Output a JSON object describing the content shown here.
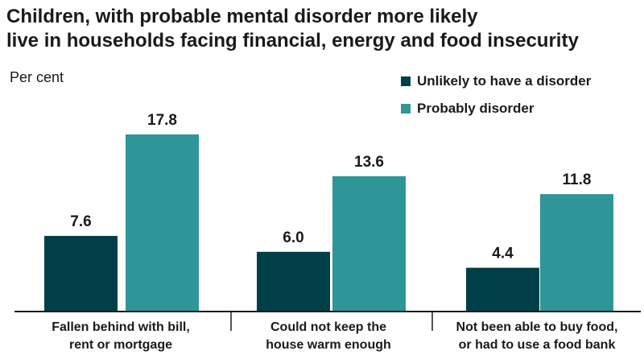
{
  "chart_data": {
    "type": "bar",
    "title_line1": "Children, with probable mental disorder more likely",
    "title_line2": "live in households facing financial, energy and food insecurity",
    "ylabel": "Per cent",
    "xlabel": "",
    "ylim": [
      0,
      20
    ],
    "grid": false,
    "legend_position": "top-right",
    "categories": [
      {
        "line1": "Fallen behind with bill,",
        "line2": "rent or mortgage"
      },
      {
        "line1": "Could not keep the",
        "line2": "house warm enough"
      },
      {
        "line1": "Not been able to buy food,",
        "line2": "or had to use a food bank"
      }
    ],
    "series": [
      {
        "name": "Unlikely to have a disorder",
        "color": "#003f48",
        "values": [
          7.6,
          6.0,
          4.4
        ],
        "labels": [
          "7.6",
          "6.0",
          "4.4"
        ]
      },
      {
        "name": "Probably disorder",
        "color": "#2e9598",
        "values": [
          17.8,
          13.6,
          11.8
        ],
        "labels": [
          "17.8",
          "13.6",
          "11.8"
        ]
      }
    ]
  }
}
